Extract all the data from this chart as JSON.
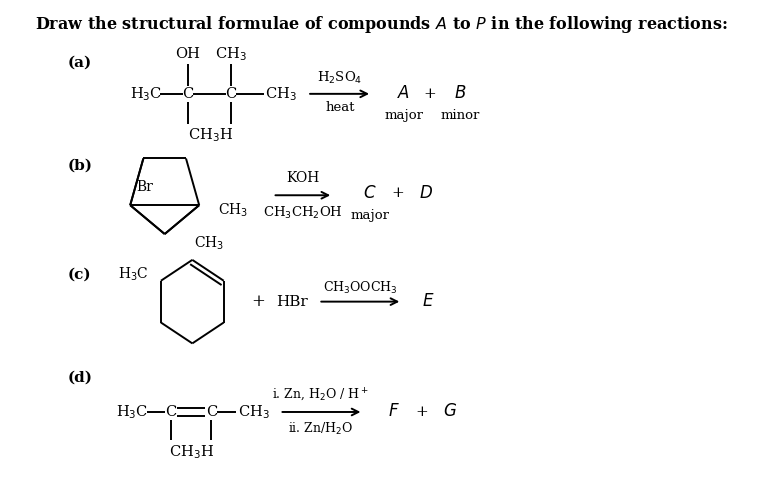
{
  "bg_color": "#ffffff",
  "fig_width": 7.63,
  "fig_height": 4.78,
  "dpi": 100,
  "title": "Draw the structural formulae of compounds $\\mathbf{\\mathit{A}}$ to $\\mathbf{\\mathit{P}}$ in the following reactions:",
  "sections": [
    "(a)",
    "(b)",
    "(c)",
    "(d)"
  ]
}
